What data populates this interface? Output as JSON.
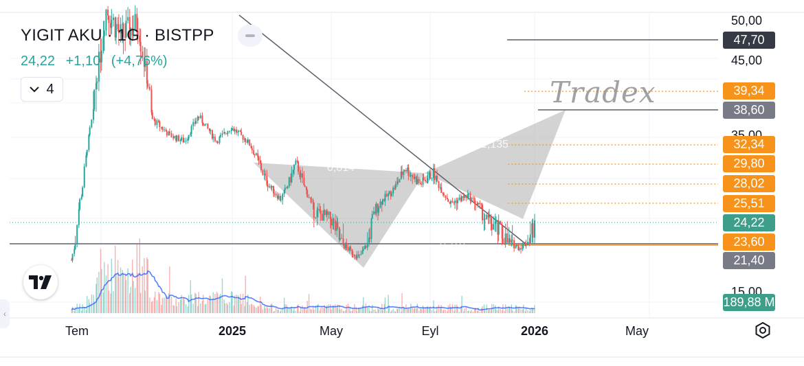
{
  "header": {
    "title": "YIGIT AKU · 1G · BISTPP",
    "last": "24,22",
    "change": "+1,10",
    "change_pct": "(+4,76%)",
    "indicator_count": "4"
  },
  "watermark": "Tradex",
  "faded_labels": [
    "0,814",
    "1,135",
    "0,707"
  ],
  "price_axis": [
    "50,00",
    "45,00",
    "35,00",
    "15,00"
  ],
  "badges": [
    {
      "name": "level-47-70",
      "text": "47,70",
      "color": "#363a45"
    },
    {
      "name": "level-39-34",
      "text": "39,34",
      "color": "#f7931a"
    },
    {
      "name": "level-38-60",
      "text": "38,60",
      "color": "#787b86"
    },
    {
      "name": "level-32-34",
      "text": "32,34",
      "color": "#f7931a"
    },
    {
      "name": "level-29-80",
      "text": "29,80",
      "color": "#f7931a"
    },
    {
      "name": "level-28-02",
      "text": "28,02",
      "color": "#f7931a"
    },
    {
      "name": "level-25-51",
      "text": "25,51",
      "color": "#f7931a"
    },
    {
      "name": "last-price",
      "text": "24,22",
      "color": "#3d9f8a"
    },
    {
      "name": "level-23-60",
      "text": "23,60",
      "color": "#f7931a"
    },
    {
      "name": "level-21-40",
      "text": "21,40",
      "color": "#787b86"
    },
    {
      "name": "volume",
      "text": "189,88 M",
      "color": "#3d9f8a"
    }
  ],
  "time_axis": [
    {
      "label": "Tem",
      "bold": false
    },
    {
      "label": "2025",
      "bold": true
    },
    {
      "label": "May",
      "bold": false
    },
    {
      "label": "Eyl",
      "bold": false
    },
    {
      "label": "2026",
      "bold": true
    },
    {
      "label": "May",
      "bold": false
    }
  ],
  "colors": {
    "up": "#26a69a",
    "down": "#ef5350",
    "volume_line": "#2962ff",
    "fib": "#f7931a"
  },
  "chart_data": {
    "type": "candlestick",
    "symbol": "YIGIT AKU",
    "interval": "1G",
    "exchange": "BISTPP",
    "last_price": 24.22,
    "volume": "189,88 M",
    "price_levels": [
      47.7,
      39.34,
      38.6,
      32.34,
      29.8,
      28.02,
      25.51,
      24.22,
      23.6,
      21.4
    ],
    "close_path": [
      [
        "2024-07-08",
        21.5
      ],
      [
        "2024-07-20",
        27.0
      ],
      [
        "2024-08-01",
        38.0
      ],
      [
        "2024-08-15",
        52.0
      ],
      [
        "2024-09-01",
        48.0
      ],
      [
        "2024-09-20",
        50.0
      ],
      [
        "2024-10-05",
        37.0
      ],
      [
        "2024-10-25",
        34.0
      ],
      [
        "2024-11-10",
        33.0
      ],
      [
        "2024-11-25",
        37.5
      ],
      [
        "2024-12-15",
        33.0
      ],
      [
        "2024-12-31",
        35.5
      ],
      [
        "2025-01-20",
        33.0
      ],
      [
        "2025-02-10",
        28.5
      ],
      [
        "2025-03-01",
        26.0
      ],
      [
        "2025-03-20",
        30.0
      ],
      [
        "2025-04-10",
        25.0
      ],
      [
        "2025-05-01",
        24.5
      ],
      [
        "2025-05-20",
        23.0
      ],
      [
        "2025-06-05",
        21.8
      ],
      [
        "2025-06-25",
        25.0
      ],
      [
        "2025-07-15",
        27.0
      ],
      [
        "2025-08-01",
        29.5
      ],
      [
        "2025-08-20",
        28.0
      ],
      [
        "2025-09-05",
        29.0
      ],
      [
        "2025-09-25",
        25.5
      ],
      [
        "2025-10-15",
        26.5
      ],
      [
        "2025-11-05",
        24.5
      ],
      [
        "2025-11-25",
        23.8
      ],
      [
        "2025-12-15",
        23.0
      ],
      [
        "2026-01-02",
        24.22
      ]
    ],
    "patterns": {
      "harmonic_lows_highs": [
        [
          "2025-03-15",
          30.0
        ],
        [
          "2025-06-05",
          21.4
        ],
        [
          "2025-08-25",
          29.0
        ],
        [
          "2026-01-05",
          38.6
        ]
      ]
    }
  }
}
